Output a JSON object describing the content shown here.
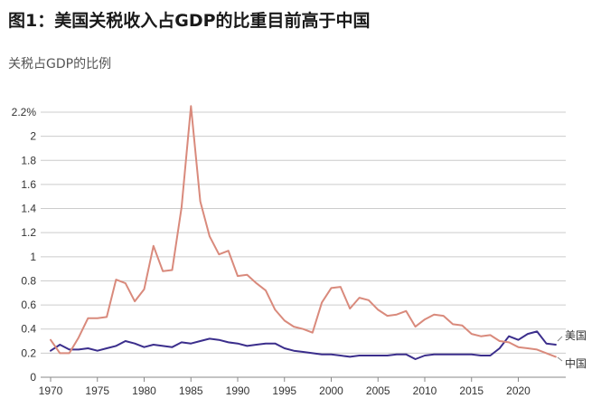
{
  "header": {
    "title": "图1：美国关税收入占GDP的比重目前高于中国",
    "subtitle": "关税占GDP的比例"
  },
  "colors": {
    "us": "#d98a7c",
    "china": "#3b2e8c",
    "grid": "#cccccc",
    "axis": "#888888"
  },
  "chart_data": {
    "type": "line",
    "title": "图1：美国关税收入占GDP的比重目前高于中国",
    "ylabel": "关税占GDP的比例",
    "xlim": [
      1969,
      2025
    ],
    "ylim": [
      0,
      2.2
    ],
    "grid": true,
    "y_ticks": [
      0,
      0.2,
      0.4,
      0.6,
      0.8,
      1,
      1.2,
      1.4,
      1.6,
      1.8,
      2,
      2.2
    ],
    "y_tick_labels": [
      "0",
      "0.2",
      "0.4",
      "0.6",
      "0.8",
      "1",
      "1.2",
      "1.4",
      "1.6",
      "1.8",
      "2",
      "2.2%"
    ],
    "x_ticks": [
      1970,
      1975,
      1980,
      1985,
      1990,
      1995,
      2000,
      2005,
      2010,
      2015,
      2020
    ],
    "x_tick_labels": [
      "1970",
      "1975",
      "1980",
      "1985",
      "1990",
      "1995",
      "2000",
      "2005",
      "2010",
      "2015",
      "2020"
    ],
    "legend": "end-of-line labels",
    "series": [
      {
        "name": "美国",
        "color": "#3b2e8c",
        "x": [
          1970,
          1971,
          1972,
          1973,
          1974,
          1975,
          1976,
          1977,
          1978,
          1979,
          1980,
          1981,
          1982,
          1983,
          1984,
          1985,
          1986,
          1987,
          1988,
          1989,
          1990,
          1991,
          1992,
          1993,
          1994,
          1995,
          1996,
          1997,
          1998,
          1999,
          2000,
          2001,
          2002,
          2003,
          2004,
          2005,
          2006,
          2007,
          2008,
          2009,
          2010,
          2011,
          2012,
          2013,
          2014,
          2015,
          2016,
          2017,
          2018,
          2019,
          2020,
          2021,
          2022,
          2023,
          2024
        ],
        "values": [
          0.22,
          0.27,
          0.23,
          0.23,
          0.24,
          0.22,
          0.24,
          0.26,
          0.3,
          0.28,
          0.25,
          0.27,
          0.26,
          0.25,
          0.29,
          0.28,
          0.3,
          0.32,
          0.31,
          0.29,
          0.28,
          0.26,
          0.27,
          0.28,
          0.28,
          0.24,
          0.22,
          0.21,
          0.2,
          0.19,
          0.19,
          0.18,
          0.17,
          0.18,
          0.18,
          0.18,
          0.18,
          0.19,
          0.19,
          0.15,
          0.18,
          0.19,
          0.19,
          0.19,
          0.19,
          0.19,
          0.18,
          0.18,
          0.24,
          0.34,
          0.31,
          0.36,
          0.38,
          0.28,
          0.27
        ]
      },
      {
        "name": "中国",
        "color": "#d98a7c",
        "x": [
          1970,
          1971,
          1972,
          1973,
          1974,
          1975,
          1976,
          1977,
          1978,
          1979,
          1980,
          1981,
          1982,
          1983,
          1984,
          1985,
          1986,
          1987,
          1988,
          1989,
          1990,
          1991,
          1992,
          1993,
          1994,
          1995,
          1996,
          1997,
          1998,
          1999,
          2000,
          2001,
          2002,
          2003,
          2004,
          2005,
          2006,
          2007,
          2008,
          2009,
          2010,
          2011,
          2012,
          2013,
          2014,
          2015,
          2016,
          2017,
          2018,
          2019,
          2020,
          2021,
          2022,
          2023,
          2024
        ],
        "values": [
          0.31,
          0.2,
          0.2,
          0.33,
          0.49,
          0.49,
          0.5,
          0.81,
          0.78,
          0.63,
          0.73,
          1.09,
          0.88,
          0.89,
          1.41,
          2.25,
          1.46,
          1.17,
          1.02,
          1.05,
          0.84,
          0.85,
          0.78,
          0.72,
          0.56,
          0.47,
          0.42,
          0.4,
          0.37,
          0.62,
          0.74,
          0.75,
          0.57,
          0.66,
          0.64,
          0.56,
          0.51,
          0.52,
          0.55,
          0.42,
          0.48,
          0.52,
          0.51,
          0.44,
          0.43,
          0.36,
          0.34,
          0.35,
          0.3,
          0.29,
          0.25,
          0.24,
          0.23,
          0.2,
          0.17
        ]
      }
    ]
  }
}
